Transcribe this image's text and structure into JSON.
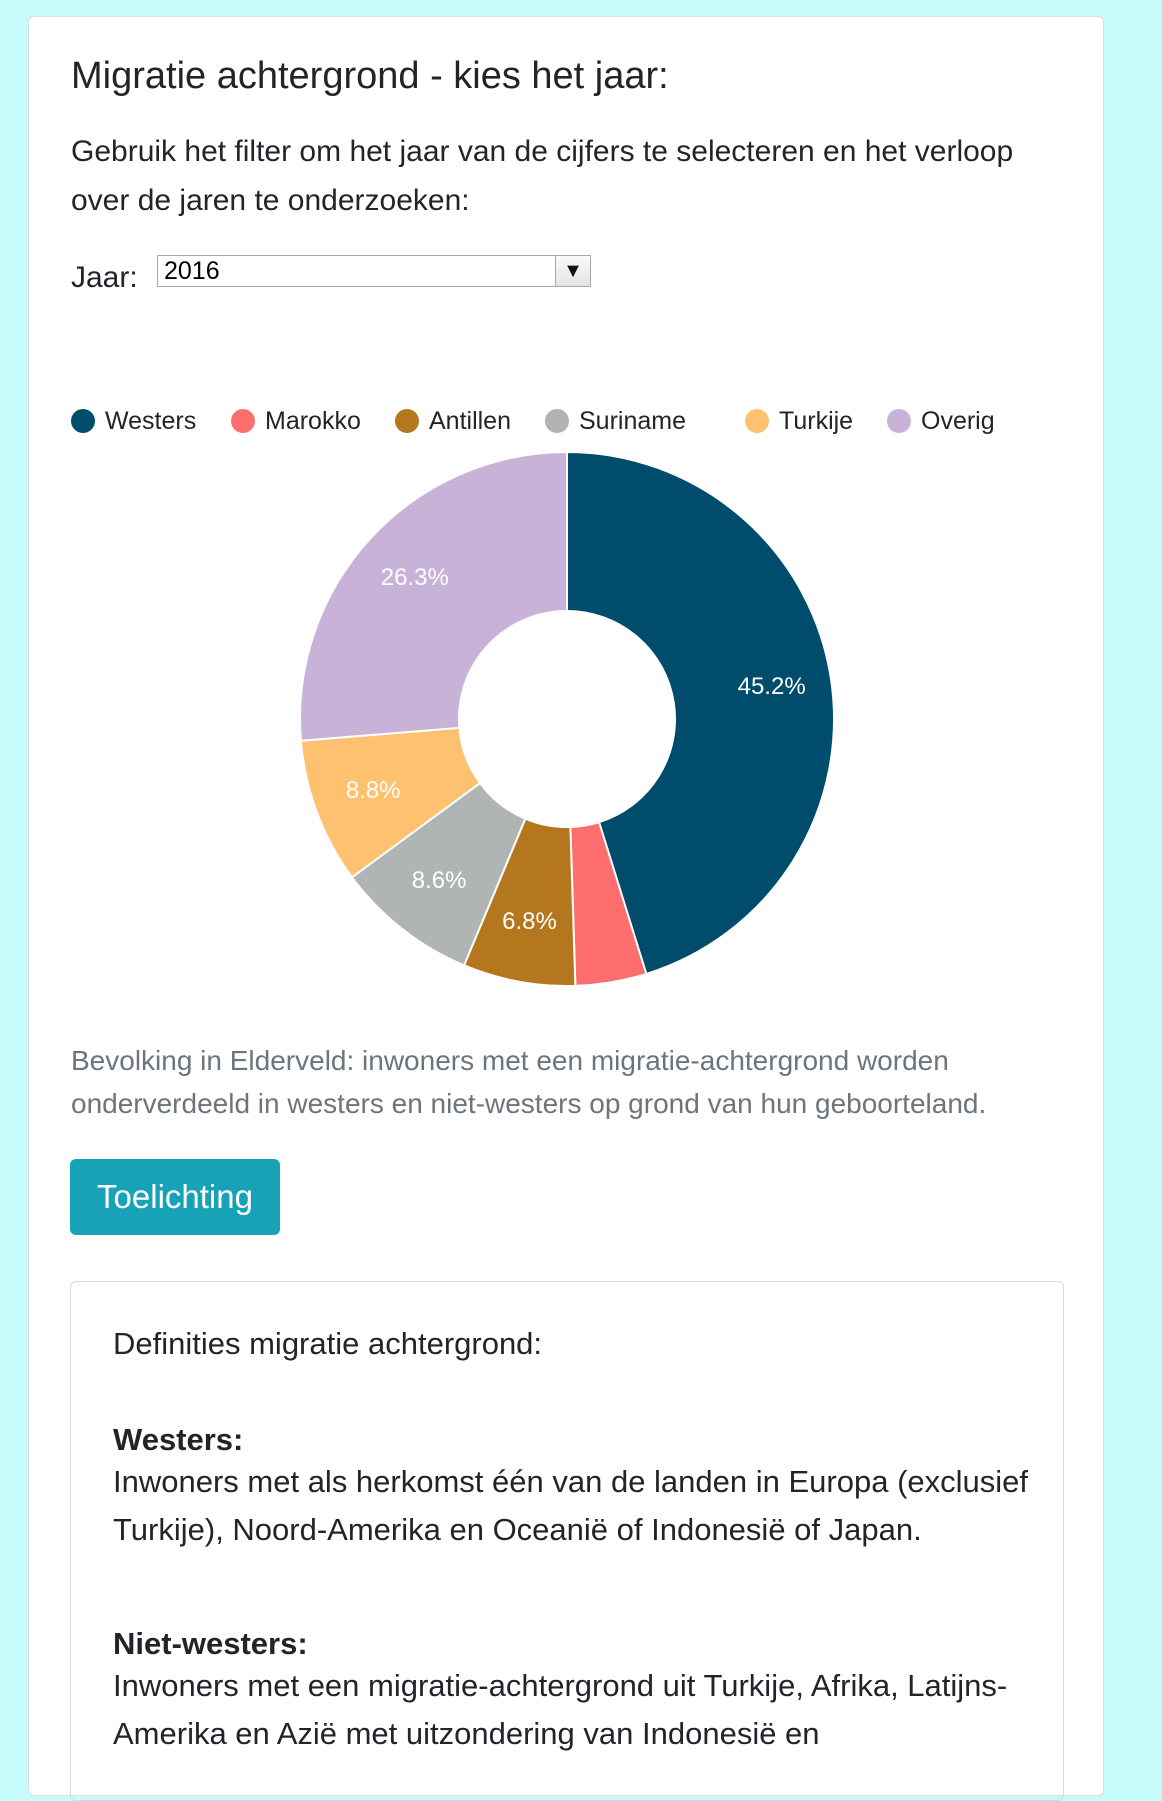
{
  "header": {
    "title": "Migratie achtergrond - kies het jaar:",
    "intro": "Gebruik het filter om het jaar van de cijfers te selecteren en het verloop over de jaren te onderzoeken:"
  },
  "filter": {
    "label": "Jaar:",
    "selected": "2016",
    "arrow": "▼"
  },
  "chart_data": {
    "type": "pie",
    "categories": [
      "Westers",
      "Marokko",
      "Antillen",
      "Suriname",
      "Turkije",
      "Overig"
    ],
    "values": [
      45.2,
      4.3,
      6.8,
      8.6,
      8.8,
      26.3
    ],
    "labels": [
      "45.2%",
      "",
      "6.8%",
      "8.6%",
      "8.8%",
      "26.3%"
    ],
    "colors": [
      "#004c6d",
      "#ff6e6e",
      "#b5771d",
      "#b0b4b4",
      "#fec170",
      "#c9b2d8"
    ],
    "legend_position": "top"
  },
  "caption": "Bevolking in Elderveld: inwoners met een migratie-achtergrond worden onderverdeeld in westers en niet-westers op grond van hun geboorteland.",
  "button": {
    "label": "Toelichting"
  },
  "definitions": {
    "title": "Definities migratie achtergrond:",
    "items": [
      {
        "term": "Westers:",
        "text": "Inwoners met als herkomst één van de landen in Europa (exclusief Turkije), Noord-Amerika en Oceanië of Indonesië of Japan."
      },
      {
        "term": "Niet-westers:",
        "text": "Inwoners met een migratie-achtergrond uit Turkije, Afrika, Latijns-Amerika en Azië met uitzondering van Indonesië en"
      }
    ]
  }
}
